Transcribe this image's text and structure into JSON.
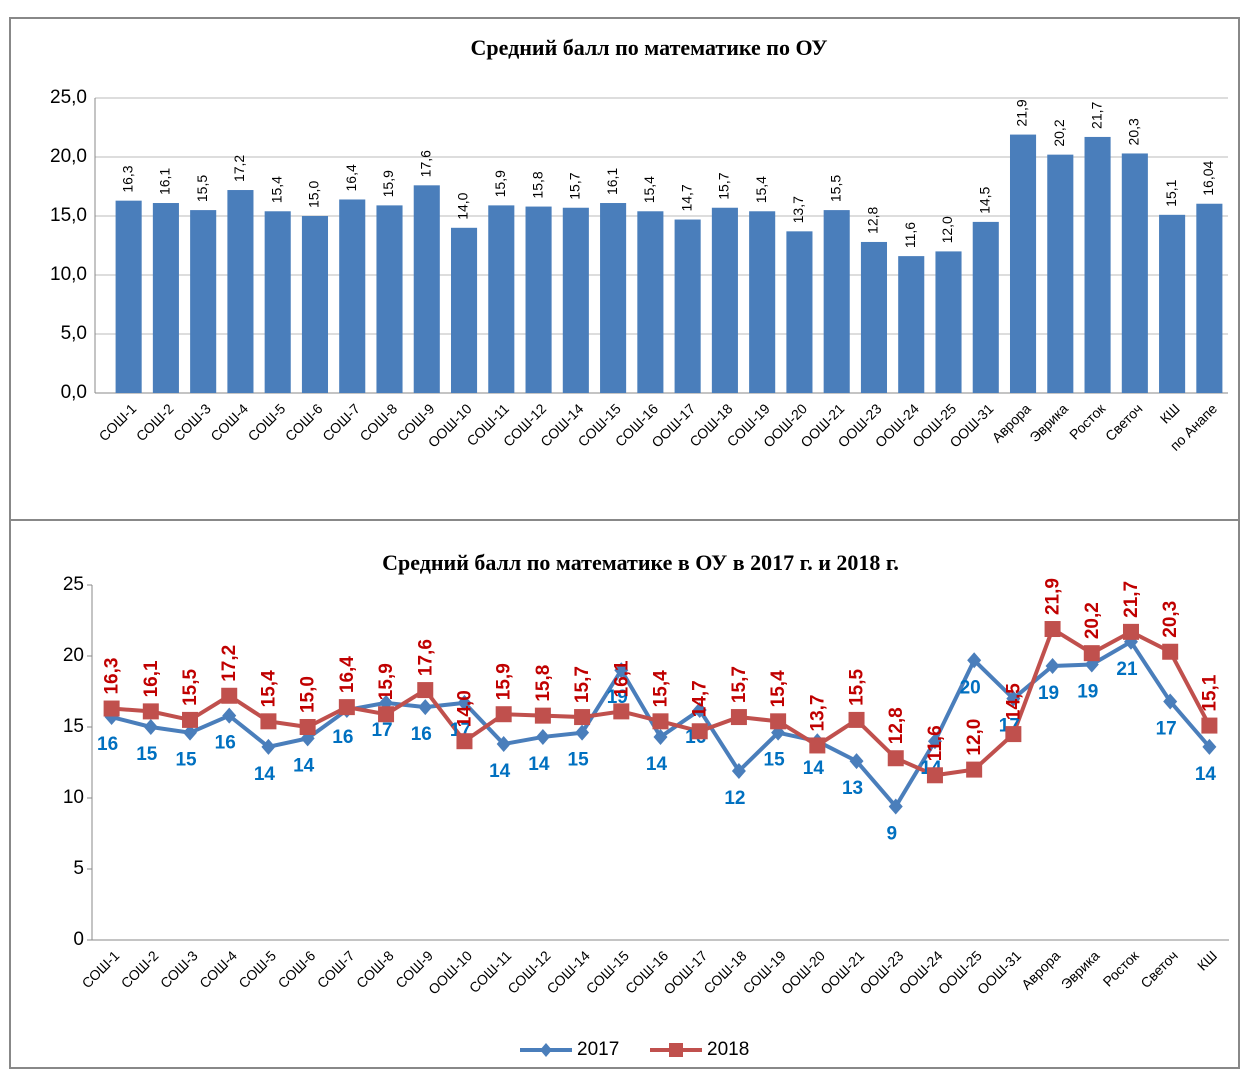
{
  "chart_data": [
    {
      "type": "bar",
      "title": "Средний балл  по математике по ОУ",
      "categories": [
        "СОШ-1",
        "СОШ-2",
        "СОШ-3",
        "СОШ-4",
        "СОШ-5",
        "СОШ-6",
        "СОШ-7",
        "СОШ-8",
        "СОШ-9",
        "ООШ-10",
        "СОШ-11",
        "СОШ-12",
        "СОШ-14",
        "СОШ-15",
        "СОШ-16",
        "ООШ-17",
        "СОШ-18",
        "СОШ-19",
        "ООШ-20",
        "ООШ-21",
        "ООШ-23",
        "ООШ-24",
        "ООШ-25",
        "ООШ-31",
        "Аврора",
        "Эврика",
        "Росток",
        "Светоч",
        "КШ",
        "по Анапе"
      ],
      "values": [
        16.3,
        16.1,
        15.5,
        17.2,
        15.4,
        15.0,
        16.4,
        15.9,
        17.6,
        14.0,
        15.9,
        15.8,
        15.7,
        16.1,
        15.4,
        14.7,
        15.7,
        15.4,
        13.7,
        15.5,
        12.8,
        11.6,
        12.0,
        14.5,
        21.9,
        20.2,
        21.7,
        20.3,
        15.1,
        16.04
      ],
      "value_labels": [
        "16,3",
        "16,1",
        "15,5",
        "17,2",
        "15,4",
        "15,0",
        "16,4",
        "15,9",
        "17,6",
        "14,0",
        "15,9",
        "15,8",
        "15,7",
        "16,1",
        "15,4",
        "14,7",
        "15,7",
        "15,4",
        "13,7",
        "15,5",
        "12,8",
        "11,6",
        "12,0",
        "14,5",
        "21,9",
        "20,2",
        "21,7",
        "20,3",
        "15,1",
        "16,04"
      ],
      "color": "#4a7ebb",
      "ylim": [
        0,
        25
      ],
      "yticks": [
        {
          "value": 0,
          "label": "0,0"
        },
        {
          "value": 5,
          "label": "5,0"
        },
        {
          "value": 10,
          "label": "10,0"
        },
        {
          "value": 15,
          "label": "15,0"
        },
        {
          "value": 20,
          "label": "20,0"
        },
        {
          "value": 25,
          "label": "25,0"
        }
      ],
      "grid": true
    },
    {
      "type": "line",
      "title": "Средний балл по математике в  ОУ в 2017 г.  и 2018 г.",
      "categories": [
        "СОШ-1",
        "СОШ-2",
        "СОШ-3",
        "СОШ-4",
        "СОШ-5",
        "СОШ-6",
        "СОШ-7",
        "СОШ-8",
        "СОШ-9",
        "ООШ-10",
        "СОШ-11",
        "СОШ-12",
        "СОШ-14",
        "СОШ-15",
        "СОШ-16",
        "ООШ-17",
        "СОШ-18",
        "СОШ-19",
        "ООШ-20",
        "ООШ-21",
        "ООШ-23",
        "ООШ-24",
        "ООШ-25",
        "ООШ-31",
        "Аврора",
        "Эврика",
        "Росток",
        "Светоч",
        "КШ"
      ],
      "series": [
        {
          "name": "2017",
          "color": "#4a7ebb",
          "marker": "diamond",
          "values": [
            15.7,
            15.0,
            14.6,
            15.8,
            13.6,
            14.2,
            16.2,
            16.7,
            16.4,
            16.7,
            13.8,
            14.3,
            14.6,
            19.0,
            14.3,
            16.2,
            11.9,
            14.6,
            14.0,
            12.6,
            9.4,
            14.0,
            19.7,
            17.0,
            19.3,
            19.4,
            21.0,
            16.8,
            13.6
          ],
          "value_labels": [
            "16",
            "15",
            "15",
            "16",
            "14",
            "14",
            "16",
            "17",
            "16",
            "17",
            "14",
            "14",
            "15",
            "19",
            "14",
            "16",
            "12",
            "15",
            "14",
            "13",
            "9",
            "14",
            "20",
            "17",
            "19",
            "19",
            "21",
            "17",
            "14"
          ]
        },
        {
          "name": "2018",
          "color": "#c0504d",
          "marker": "square",
          "values": [
            16.3,
            16.1,
            15.5,
            17.2,
            15.4,
            15.0,
            16.4,
            15.9,
            17.6,
            14.0,
            15.9,
            15.8,
            15.7,
            16.1,
            15.4,
            14.7,
            15.7,
            15.4,
            13.7,
            15.5,
            12.8,
            11.6,
            12.0,
            14.5,
            21.9,
            20.2,
            21.7,
            20.3,
            15.1
          ],
          "value_labels": [
            "16,3",
            "16,1",
            "15,5",
            "17,2",
            "15,4",
            "15,0",
            "16,4",
            "15,9",
            "17,6",
            "14,0",
            "15,9",
            "15,8",
            "15,7",
            "16,1",
            "15,4",
            "14,7",
            "15,7",
            "15,4",
            "13,7",
            "15,5",
            "12,8",
            "11,6",
            "12,0",
            "14,5",
            "21,9",
            "20,2",
            "21,7",
            "20,3",
            "15,1"
          ]
        }
      ],
      "ylim": [
        0,
        25
      ],
      "yticks": [
        0,
        5,
        10,
        15,
        20,
        25
      ],
      "grid": false,
      "legend": "bottom"
    }
  ]
}
